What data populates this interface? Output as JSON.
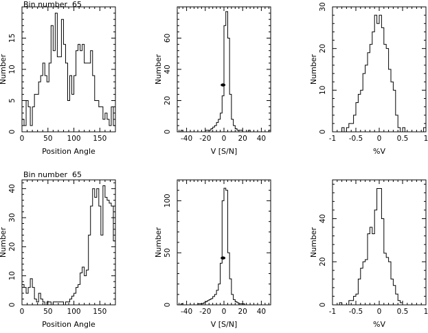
{
  "figure": {
    "rows": [
      {
        "title": "Bin number  65"
      },
      {
        "title": "Bin number  65"
      }
    ]
  },
  "chart_data": [
    {
      "type": "histogram",
      "row": 0,
      "col": 0,
      "title": "",
      "xlabel": "Position Angle",
      "ylabel": "Number",
      "xlim": [
        0,
        180
      ],
      "ylim": [
        0,
        20
      ],
      "xticks": [
        0,
        50,
        100,
        150
      ],
      "yticks": [
        0,
        5,
        10,
        15
      ],
      "bin_start": 0,
      "bin_width": 4,
      "values": [
        2,
        1,
        5,
        4,
        1,
        4,
        6,
        6,
        8,
        9,
        11,
        9,
        8,
        11,
        17,
        13,
        19,
        12,
        12,
        18,
        14,
        11,
        5,
        9,
        6,
        9,
        13,
        14,
        13,
        14,
        11,
        11,
        11,
        13,
        9,
        5,
        5,
        4,
        4,
        2,
        3,
        2,
        1,
        4,
        1
      ]
    },
    {
      "type": "histogram",
      "row": 0,
      "col": 1,
      "title": "",
      "xlabel": "V [S/N]",
      "ylabel": "Number",
      "xlim": [
        -50,
        50
      ],
      "ylim": [
        0,
        80
      ],
      "xticks": [
        -40,
        -20,
        0,
        20,
        40
      ],
      "yticks": [
        0,
        20,
        40,
        60
      ],
      "bin_start": -50,
      "bin_width": 2,
      "values": [
        0,
        0,
        1,
        0,
        0,
        0,
        0,
        0,
        0,
        0,
        0,
        0,
        0,
        0,
        0,
        1,
        1,
        1,
        2,
        3,
        4,
        6,
        8,
        12,
        23,
        68,
        77,
        60,
        24,
        8,
        4,
        2,
        1,
        1,
        1,
        0,
        0,
        0,
        1,
        0,
        0,
        0,
        0,
        0,
        0,
        0,
        0,
        0,
        0,
        1
      ],
      "marker": {
        "x": -1,
        "y": 30
      }
    },
    {
      "type": "histogram",
      "row": 0,
      "col": 2,
      "title": "",
      "xlabel": "%V",
      "ylabel": "Number",
      "xlim": [
        -1,
        1
      ],
      "ylim": [
        0,
        30
      ],
      "xticks": [
        -1,
        -0.5,
        0,
        0.5,
        1
      ],
      "yticks": [
        0,
        10,
        20,
        30
      ],
      "bin_start": -1,
      "bin_width": 0.05,
      "values": [
        0,
        0,
        0,
        0,
        1,
        0,
        1,
        2,
        2,
        4,
        7,
        9,
        10,
        14,
        16,
        19,
        21,
        24,
        28,
        26,
        28,
        25,
        21,
        20,
        15,
        12,
        10,
        4,
        1,
        0,
        1,
        0,
        0,
        0,
        0,
        0,
        0,
        0,
        0,
        1
      ]
    },
    {
      "type": "histogram",
      "row": 1,
      "col": 0,
      "title": "",
      "xlabel": "Position Angle",
      "ylabel": "Number",
      "xlim": [
        0,
        180
      ],
      "ylim": [
        0,
        43
      ],
      "xticks": [
        0,
        50,
        100,
        150
      ],
      "yticks": [
        0,
        10,
        20,
        30,
        40
      ],
      "bin_start": 0,
      "bin_width": 4,
      "values": [
        7,
        6,
        4,
        6,
        9,
        6,
        2,
        1,
        4,
        2,
        1,
        0,
        1,
        1,
        0,
        1,
        1,
        1,
        1,
        1,
        0,
        1,
        1,
        2,
        3,
        4,
        6,
        7,
        11,
        13,
        10,
        12,
        24,
        34,
        40,
        37,
        40,
        34,
        24,
        41,
        37,
        36,
        35,
        34,
        22
      ]
    },
    {
      "type": "histogram",
      "row": 1,
      "col": 1,
      "title": "",
      "xlabel": "V [S/N]",
      "ylabel": "Number",
      "xlim": [
        -50,
        50
      ],
      "ylim": [
        0,
        120
      ],
      "xticks": [
        -40,
        -20,
        0,
        20,
        40
      ],
      "yticks": [
        0,
        50,
        100
      ],
      "bin_start": -50,
      "bin_width": 2,
      "values": [
        0,
        0,
        1,
        0,
        0,
        0,
        0,
        0,
        0,
        0,
        0,
        1,
        1,
        1,
        2,
        3,
        4,
        5,
        6,
        8,
        10,
        14,
        20,
        40,
        100,
        112,
        110,
        50,
        25,
        10,
        5,
        3,
        2,
        1,
        1,
        1,
        0,
        0,
        0,
        0,
        0,
        0,
        0,
        0,
        0,
        0,
        0,
        0,
        0,
        0
      ],
      "marker": {
        "x": -1,
        "y": 45
      }
    },
    {
      "type": "histogram",
      "row": 1,
      "col": 2,
      "title": "",
      "xlabel": "%V",
      "ylabel": "Number",
      "xlim": [
        -1,
        1
      ],
      "ylim": [
        0,
        58
      ],
      "xticks": [
        -1,
        -0.5,
        0,
        0.5,
        1
      ],
      "yticks": [
        0,
        20,
        40
      ],
      "bin_start": -1,
      "bin_width": 0.05,
      "values": [
        0,
        0,
        0,
        1,
        0,
        0,
        0,
        2,
        2,
        4,
        5,
        12,
        17,
        20,
        21,
        33,
        36,
        33,
        44,
        54,
        54,
        40,
        24,
        22,
        20,
        12,
        9,
        5,
        2,
        1,
        0,
        0,
        0,
        0,
        0,
        0,
        0,
        0,
        0,
        0
      ]
    }
  ]
}
